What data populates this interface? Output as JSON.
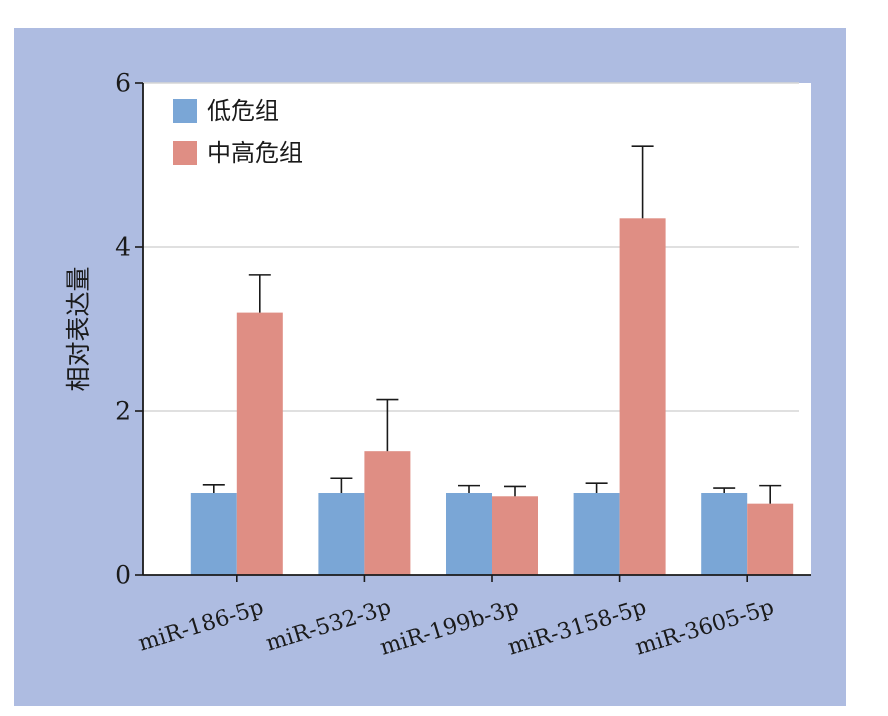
{
  "chart_data": {
    "type": "bar",
    "ylabel": "相对表达量",
    "xlabel": "",
    "ylim": [
      0,
      6
    ],
    "yticks": [
      0,
      2,
      4,
      6
    ],
    "grid": true,
    "legend_position": "top-left",
    "categories": [
      "miR-186-5p",
      "miR-532-3p",
      "miR-199b-3p",
      "miR-3158-5p",
      "miR-3605-5p"
    ],
    "series": [
      {
        "name": "低危组",
        "color": "#7aa6d6",
        "values": [
          1.0,
          1.0,
          1.0,
          1.0,
          1.0
        ],
        "errors": [
          0.1,
          0.18,
          0.09,
          0.12,
          0.06
        ]
      },
      {
        "name": "中高危组",
        "color": "#df8e84",
        "values": [
          3.2,
          1.51,
          0.96,
          4.35,
          0.87
        ],
        "errors": [
          0.46,
          0.63,
          0.12,
          0.88,
          0.22
        ]
      }
    ]
  }
}
